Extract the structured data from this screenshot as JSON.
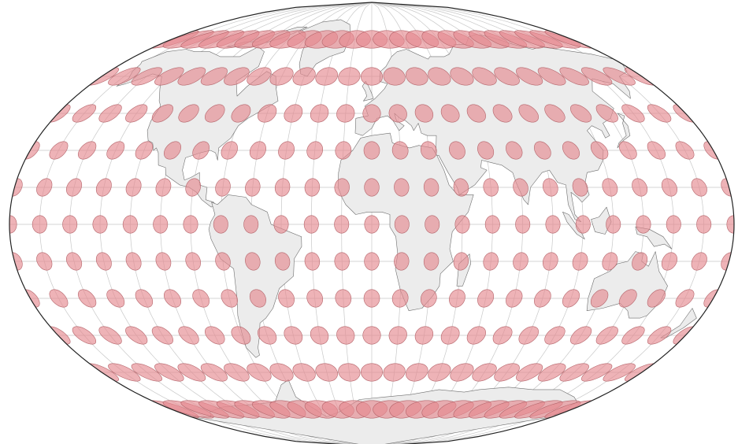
{
  "map": {
    "projection": "winkel-tripel-like",
    "colors": {
      "background": "#ffffff",
      "ocean": "#ffffff",
      "land": "#ececec",
      "coastline": "#6e6e6e",
      "graticule": "#c8c8c8",
      "outline": "#222222",
      "indicatrix_fill": "#e58a90",
      "indicatrix_stroke": "#b4646a"
    },
    "graticule_step_deg": 15,
    "indicatrix_step_deg": 15,
    "features": [
      "coastlines",
      "land",
      "graticule",
      "tissot-indicatrices"
    ]
  }
}
